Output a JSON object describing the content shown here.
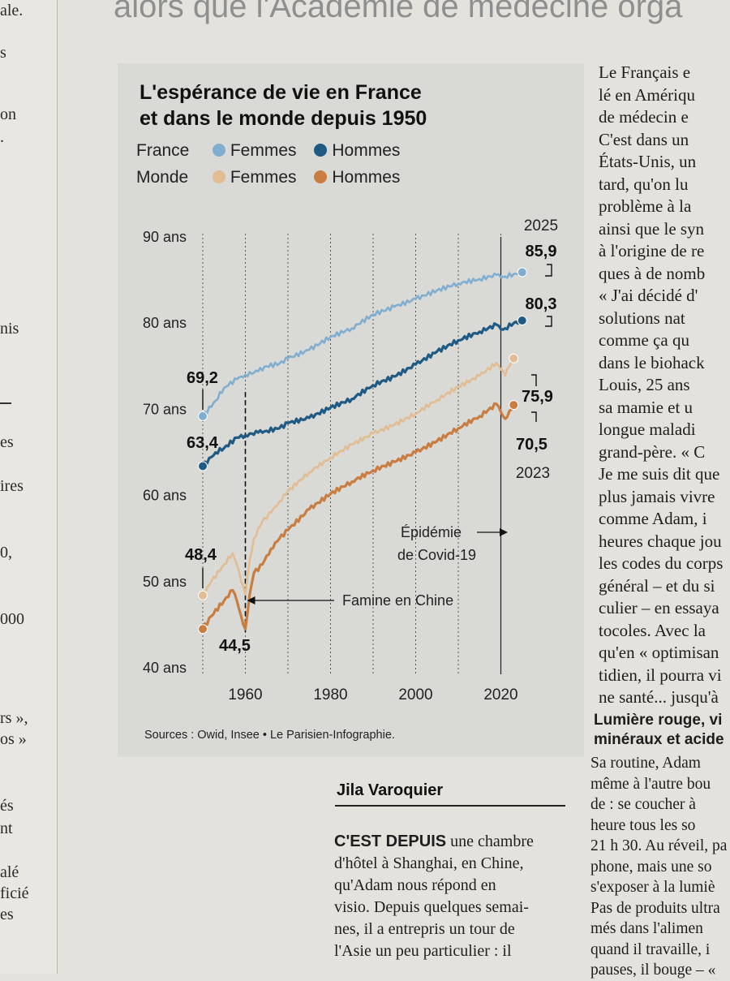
{
  "headline_fragment": "alors que l'Académie de médecine orga",
  "left_column_fragments": [
    "ale.",
    "s",
    "on",
    ".",
    "nis",
    "es",
    "ires",
    "0,",
    "000",
    "rs »,",
    "os »",
    "és",
    "nt",
    "alé",
    "ficié",
    "es"
  ],
  "chart_data": {
    "type": "line",
    "title_line1": "L'espérance de vie en France",
    "title_line2": "et dans le monde depuis 1950",
    "legend": {
      "rows": [
        {
          "label": "France",
          "items": [
            {
              "name": "Femmes",
              "color": "#80aed0"
            },
            {
              "name": "Hommes",
              "color": "#1f5a84"
            }
          ]
        },
        {
          "label": "Monde",
          "items": [
            {
              "name": "Femmes",
              "color": "#e2bc92"
            },
            {
              "name": "Hommes",
              "color": "#c97d40"
            }
          ]
        }
      ]
    },
    "y_ticks": [
      {
        "value": 90,
        "label": "90 ans"
      },
      {
        "value": 80,
        "label": "80 ans"
      },
      {
        "value": 70,
        "label": "70 ans"
      },
      {
        "value": 60,
        "label": "60 ans"
      },
      {
        "value": 50,
        "label": "50 ans"
      },
      {
        "value": 40,
        "label": "40 ans"
      }
    ],
    "x_ticks": [
      1960,
      1980,
      2000,
      2020
    ],
    "x_labels": [
      "1960",
      "1980",
      "2000",
      "2020"
    ],
    "xlim": [
      1950,
      2025
    ],
    "ylim": [
      40,
      90
    ],
    "gridlines": "vertical-dotted",
    "series": [
      {
        "name": "France Femmes",
        "color": "#80aed0",
        "x": [
          1950,
          1953,
          1955,
          1958,
          1960,
          1963,
          1965,
          1968,
          1970,
          1975,
          1980,
          1985,
          1990,
          1995,
          2000,
          2005,
          2010,
          2015,
          2019,
          2020,
          2021,
          2023,
          2025
        ],
        "y": [
          69.2,
          71.0,
          72.5,
          73.5,
          74.0,
          74.4,
          75.0,
          75.3,
          75.9,
          76.9,
          78.4,
          79.4,
          81.0,
          81.9,
          82.8,
          83.8,
          84.6,
          85.1,
          85.6,
          85.3,
          85.4,
          85.7,
          85.9
        ]
      },
      {
        "name": "France Hommes",
        "color": "#1f5a84",
        "x": [
          1950,
          1953,
          1955,
          1958,
          1960,
          1963,
          1965,
          1968,
          1970,
          1975,
          1980,
          1985,
          1990,
          1995,
          2000,
          2005,
          2010,
          2015,
          2019,
          2020,
          2021,
          2023,
          2025
        ],
        "y": [
          63.4,
          65.0,
          65.5,
          66.7,
          67.0,
          67.3,
          67.5,
          67.8,
          68.4,
          69.0,
          70.2,
          71.2,
          72.8,
          73.8,
          75.2,
          76.7,
          78.0,
          79.0,
          79.8,
          79.3,
          79.4,
          80.0,
          80.3
        ]
      },
      {
        "name": "Monde Femmes",
        "color": "#e2bc92",
        "x": [
          1950,
          1952,
          1955,
          1957,
          1958,
          1959,
          1960,
          1961,
          1962,
          1964,
          1966,
          1968,
          1970,
          1975,
          1980,
          1985,
          1990,
          1995,
          2000,
          2005,
          2010,
          2015,
          2019,
          2020,
          2021,
          2022,
          2023
        ],
        "y": [
          48.4,
          50.0,
          52.0,
          53.3,
          52.0,
          50.0,
          48.5,
          52.5,
          55.0,
          57.0,
          58.0,
          59.3,
          60.5,
          62.7,
          64.4,
          65.9,
          67.2,
          68.2,
          69.5,
          71.1,
          72.6,
          73.9,
          75.4,
          74.6,
          73.9,
          75.0,
          75.9
        ]
      },
      {
        "name": "Monde Hommes",
        "color": "#c97d40",
        "x": [
          1950,
          1952,
          1955,
          1957,
          1958,
          1959,
          1960,
          1961,
          1962,
          1964,
          1966,
          1968,
          1970,
          1975,
          1980,
          1985,
          1990,
          1995,
          2000,
          2005,
          2010,
          2015,
          2019,
          2020,
          2021,
          2022,
          2023
        ],
        "y": [
          44.5,
          46.0,
          47.8,
          49.0,
          47.8,
          46.0,
          44.5,
          48.5,
          51.0,
          52.0,
          53.8,
          55.0,
          56.0,
          58.4,
          60.2,
          61.6,
          62.9,
          63.9,
          65.0,
          66.3,
          67.8,
          69.2,
          70.6,
          69.7,
          68.9,
          69.8,
          70.5
        ]
      }
    ],
    "value_labels": [
      {
        "text": "69,2",
        "series": "France Femmes",
        "at": "start"
      },
      {
        "text": "63,4",
        "series": "France Hommes",
        "at": "start"
      },
      {
        "text": "48,4",
        "series": "Monde Femmes",
        "at": "start"
      },
      {
        "text": "44,5",
        "series": "Monde Hommes",
        "at": "start"
      },
      {
        "text": "85,9",
        "series": "France Femmes",
        "at": "end"
      },
      {
        "text": "80,3",
        "series": "France Hommes",
        "at": "end"
      },
      {
        "text": "75,9",
        "series": "Monde Femmes",
        "at": "end"
      },
      {
        "text": "70,5",
        "series": "Monde Hommes",
        "at": "end"
      }
    ],
    "year_labels": {
      "top": "2025",
      "bottom": "2023"
    },
    "annotations": [
      {
        "text": "Famine en Chine",
        "x": 1960
      },
      {
        "text_line1": "Épidémie",
        "text_line2": "de Covid-19",
        "x": 2020
      }
    ],
    "source": "Sources : Owid, Insee • Le Parisien-Infographie."
  },
  "article_right": [
    "Le Français e",
    "lé en Amériqu",
    "de médecin e",
    "C'est dans un",
    "États-Unis, un",
    "tard, qu'on lu",
    "problème à la",
    "ainsi que le syn",
    "à l'origine de re",
    "ques à de nomb",
    "« J'ai décidé d'",
    "solutions nat",
    "comme ça qu",
    "dans le biohack",
    "Louis, 25 ans",
    "sa mamie et u",
    "longue maladi",
    "grand-père. « C",
    "Je me suis dit que",
    "plus jamais vivre",
    "comme Adam, i",
    "heures chaque jou",
    "les codes du corps",
    "général – et du si",
    "culier – en essaya",
    "tocoles. Avec la",
    "qu'en « optimisan",
    "tidien, il pourra vi",
    "ne santé... jusqu'à"
  ],
  "subhead_lines": [
    "Lumière rouge, vi",
    "minéraux et acide"
  ],
  "article_right_2": [
    "Sa routine, Adam",
    "même à l'autre bou",
    "de : se coucher à",
    "heure tous les so",
    "21 h 30. Au réveil, pa",
    "phone, mais une so",
    "s'exposer à la lumiè",
    "Pas de produits ultra",
    "més dans l'alimen",
    "quand il travaille, i",
    "pauses, il bouge – «"
  ],
  "byline": "Jila Varoquier",
  "article_main_lead": "C'EST DEPUIS",
  "article_main_first": " une chambre",
  "article_main": [
    "d'hôtel à Shanghai, en Chine,",
    "qu'Adam nous répond en",
    "visio. Depuis quelques semai-",
    "nes, il a entrepris un tour de",
    "l'Asie un peu particulier : il"
  ]
}
